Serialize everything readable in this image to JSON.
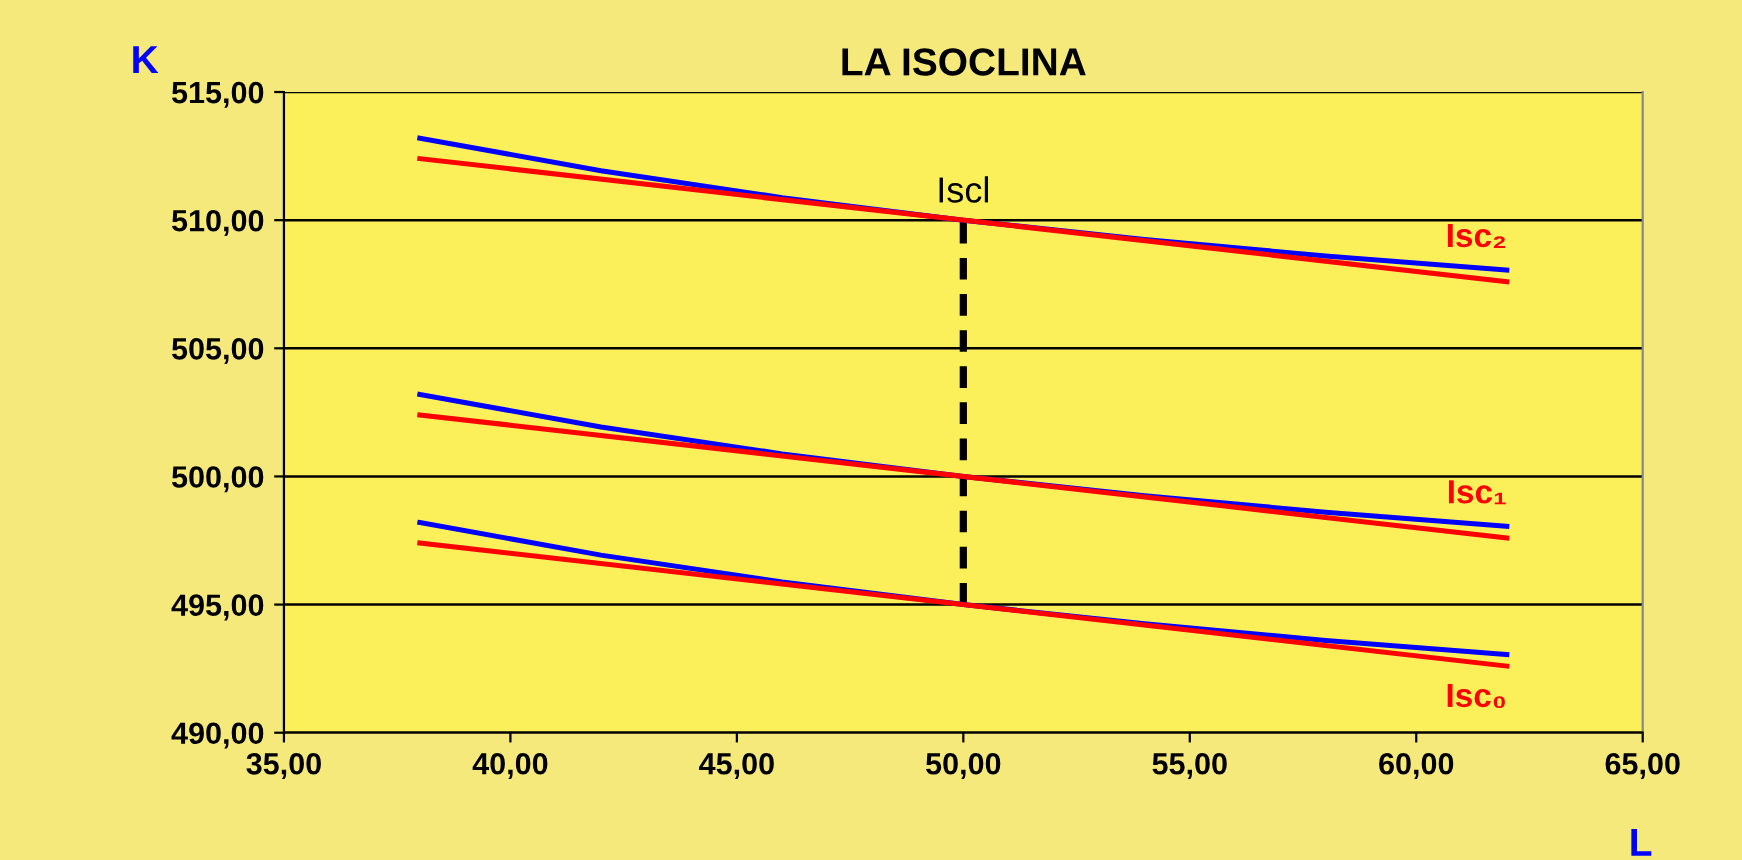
{
  "chart_data": {
    "type": "line",
    "title": "LA ISOCLINA",
    "xlabel": "L",
    "ylabel": "K",
    "xlim": [
      35,
      65
    ],
    "xticks": [
      {
        "value": 35,
        "label": "35,00"
      },
      {
        "value": 40,
        "label": "40,00"
      },
      {
        "value": 45,
        "label": "45,00"
      },
      {
        "value": 50,
        "label": "50,00"
      },
      {
        "value": 55,
        "label": "55,00"
      },
      {
        "value": 60,
        "label": "60,00"
      },
      {
        "value": 65,
        "label": "65,00"
      }
    ],
    "ylim": [
      490,
      515
    ],
    "yticks": [
      {
        "value": 490,
        "label": "490,00"
      },
      {
        "value": 495,
        "label": "495,00"
      },
      {
        "value": 500,
        "label": "500,00"
      },
      {
        "value": 505,
        "label": "505,00"
      },
      {
        "value": 510,
        "label": "510,00"
      },
      {
        "value": 515,
        "label": "515,00"
      }
    ],
    "grid": "y",
    "legend": false,
    "marker": "none",
    "series": [
      {
        "color": "#0000ff",
        "x": [
          38,
          42,
          46,
          50,
          54,
          58,
          62
        ],
        "values": [
          513.2,
          511.93,
          510.88,
          510,
          509.25,
          508.6,
          508.05
        ]
      },
      {
        "name": "Isc₂",
        "color": "#ff0000",
        "x": [
          38,
          62
        ],
        "values": [
          512.4,
          507.6
        ]
      },
      {
        "color": "#0000ff",
        "x": [
          38,
          42,
          46,
          50,
          54,
          58,
          62
        ],
        "values": [
          503.2,
          501.93,
          500.88,
          500,
          499.25,
          498.6,
          498.05
        ]
      },
      {
        "name": "Isc₁",
        "color": "#ff0000",
        "x": [
          38,
          62
        ],
        "values": [
          502.4,
          497.6
        ]
      },
      {
        "color": "#0000ff",
        "x": [
          38,
          42,
          46,
          50,
          54,
          58,
          62
        ],
        "values": [
          498.2,
          496.93,
          495.88,
          495,
          494.25,
          493.6,
          493.05
        ]
      },
      {
        "name": "Isc₀",
        "color": "#ff0000",
        "x": [
          38,
          62
        ],
        "values": [
          497.4,
          492.6
        ]
      },
      {
        "color": "#000000",
        "line_style": "dashed",
        "x": [
          50,
          50
        ],
        "values": [
          495,
          510
        ]
      }
    ],
    "annotations": [
      {
        "text": "Iscl",
        "x": 50,
        "y": 510
      }
    ]
  }
}
